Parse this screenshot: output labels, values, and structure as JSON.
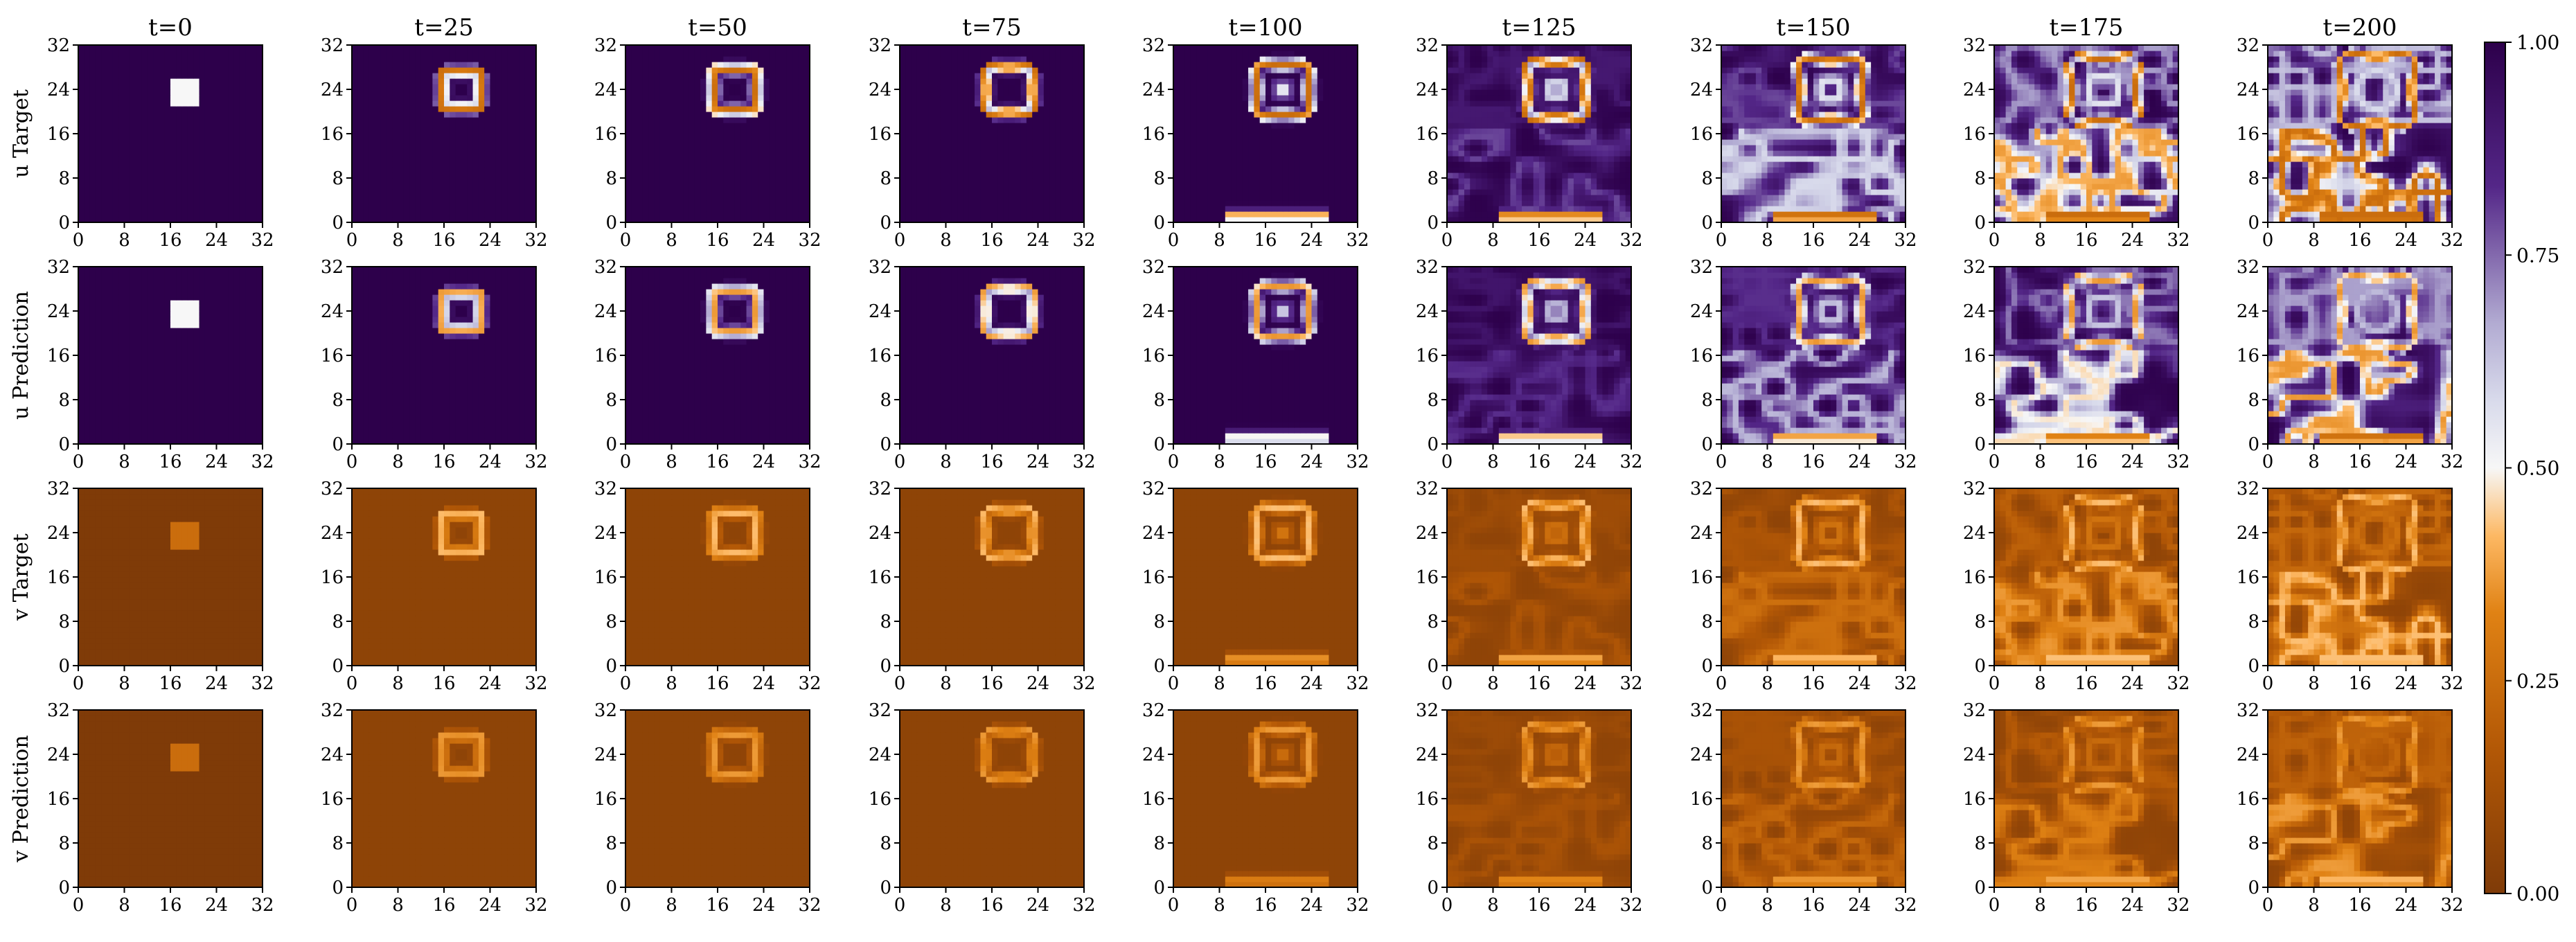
{
  "chart_data": {
    "type": "heatmap",
    "time_labels": [
      "t=0",
      "t=25",
      "t=50",
      "t=75",
      "t=100",
      "t=125",
      "t=150",
      "t=175",
      "t=200"
    ],
    "row_labels": [
      "u Target",
      "u Prediction",
      "v Target",
      "v Prediction"
    ],
    "axis_ticks": [
      "0",
      "8",
      "16",
      "24",
      "32"
    ],
    "x_range": [
      0,
      32
    ],
    "y_range": [
      0,
      32
    ],
    "grid_size": 32,
    "colormap": "PuOr",
    "colorbar": {
      "range": [
        0.0,
        1.0
      ],
      "ticks": [
        "0.00",
        "0.25",
        "0.50",
        "0.75",
        "1.00"
      ],
      "colors": [
        "#7f3b08",
        "#e08214",
        "#fdb863",
        "#f7f7f7",
        "#b2abd2",
        "#8073ac",
        "#2d004b"
      ]
    },
    "initial_square": {
      "x0": 16,
      "x1": 21,
      "y0": 21,
      "y1": 26,
      "u_value": 0.5,
      "v_value": 0.25,
      "background_u": 1.0,
      "background_v": 0.0
    },
    "grid": "off"
  }
}
